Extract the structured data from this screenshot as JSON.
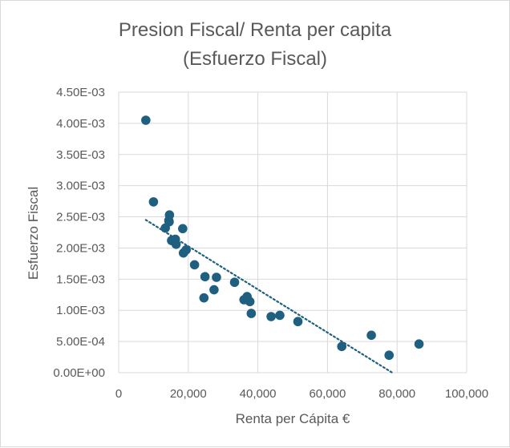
{
  "chart_data": {
    "type": "scatter",
    "title_lines": [
      "Presion Fiscal/ Renta per capita",
      "(Esfuerzo Fiscal)"
    ],
    "xlabel": "Renta per Cápita €",
    "ylabel": "Esfuerzo Fiscal",
    "xlim": [
      0,
      100000
    ],
    "ylim": [
      0,
      0.0045
    ],
    "xticks": [
      0,
      20000,
      40000,
      60000,
      80000,
      100000
    ],
    "xtick_labels": [
      "0",
      "20,000",
      "40,000",
      "60,000",
      "80,000",
      "100,000"
    ],
    "yticks": [
      0,
      0.0005,
      0.001,
      0.0015,
      0.002,
      0.0025,
      0.003,
      0.0035,
      0.004,
      0.0045
    ],
    "ytick_labels": [
      "0.00E+00",
      "5.00E-04",
      "1.00E-03",
      "1.50E-03",
      "2.00E-03",
      "2.50E-03",
      "3.00E-03",
      "3.50E-03",
      "4.00E-03",
      "4.50E-03"
    ],
    "grid": true,
    "legend": false,
    "marker_color": "#1f5f7f",
    "trendline": {
      "type": "linear",
      "style": "dotted",
      "color": "#1f5f7f",
      "x": [
        7800,
        78600
      ],
      "y": [
        0.00245,
        0.0
      ]
    },
    "points": [
      {
        "x": 7800,
        "y": 0.00405
      },
      {
        "x": 10000,
        "y": 0.00274
      },
      {
        "x": 13400,
        "y": 0.00232
      },
      {
        "x": 14400,
        "y": 0.00244
      },
      {
        "x": 14600,
        "y": 0.00253
      },
      {
        "x": 14500,
        "y": 0.00242
      },
      {
        "x": 15200,
        "y": 0.00212
      },
      {
        "x": 16300,
        "y": 0.00214
      },
      {
        "x": 16500,
        "y": 0.00206
      },
      {
        "x": 18400,
        "y": 0.00231
      },
      {
        "x": 18600,
        "y": 0.00192
      },
      {
        "x": 19400,
        "y": 0.00197
      },
      {
        "x": 21800,
        "y": 0.00173
      },
      {
        "x": 24800,
        "y": 0.00154
      },
      {
        "x": 24500,
        "y": 0.0012
      },
      {
        "x": 27400,
        "y": 0.00133
      },
      {
        "x": 28100,
        "y": 0.00153
      },
      {
        "x": 33300,
        "y": 0.00145
      },
      {
        "x": 36000,
        "y": 0.00117
      },
      {
        "x": 36900,
        "y": 0.00122
      },
      {
        "x": 37700,
        "y": 0.00114
      },
      {
        "x": 38100,
        "y": 0.00095
      },
      {
        "x": 43800,
        "y": 0.0009
      },
      {
        "x": 46300,
        "y": 0.00092
      },
      {
        "x": 51500,
        "y": 0.00082
      },
      {
        "x": 64100,
        "y": 0.00042
      },
      {
        "x": 72600,
        "y": 0.0006
      },
      {
        "x": 77700,
        "y": 0.00028
      },
      {
        "x": 86300,
        "y": 0.00046
      }
    ]
  }
}
